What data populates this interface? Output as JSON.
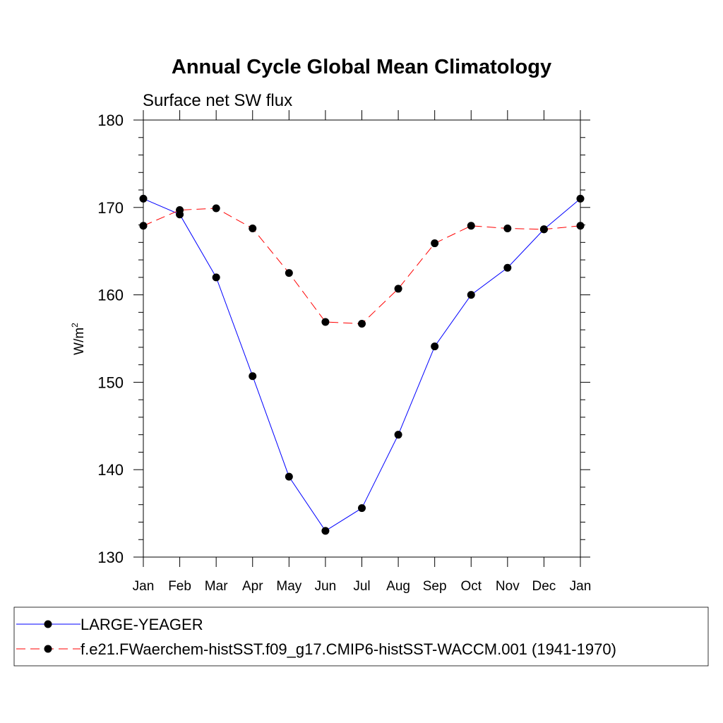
{
  "chart_data": {
    "type": "line",
    "title": "Annual Cycle Global Mean Climatology",
    "subtitle": "Surface net SW flux",
    "ylabel_base": "W/m",
    "ylabel_sup": "2",
    "ylim": [
      130,
      180
    ],
    "yticks": [
      130,
      140,
      150,
      160,
      170,
      180
    ],
    "categories": [
      "Jan",
      "Feb",
      "Mar",
      "Apr",
      "May",
      "Jun",
      "Jul",
      "Aug",
      "Sep",
      "Oct",
      "Nov",
      "Dec",
      "Jan"
    ],
    "grid": false,
    "legend_position": "bottom",
    "series": [
      {
        "name": "LARGE-YEAGER",
        "color": "#0000ff",
        "dash": "solid",
        "marker": "circle",
        "values": [
          171.0,
          169.2,
          162.0,
          150.7,
          139.2,
          133.0,
          135.6,
          144.0,
          154.1,
          160.0,
          163.1,
          167.5,
          171.0
        ]
      },
      {
        "name": "f.e21.FWaerchem-histSST.f09_g17.CMIP6-histSST-WACCM.001 (1941-1970)",
        "color": "#ff0000",
        "dash": "dashed",
        "marker": "circle",
        "values": [
          167.9,
          169.7,
          169.9,
          167.6,
          162.5,
          156.9,
          156.7,
          160.7,
          165.9,
          167.9,
          167.6,
          167.5,
          167.9
        ]
      }
    ]
  }
}
